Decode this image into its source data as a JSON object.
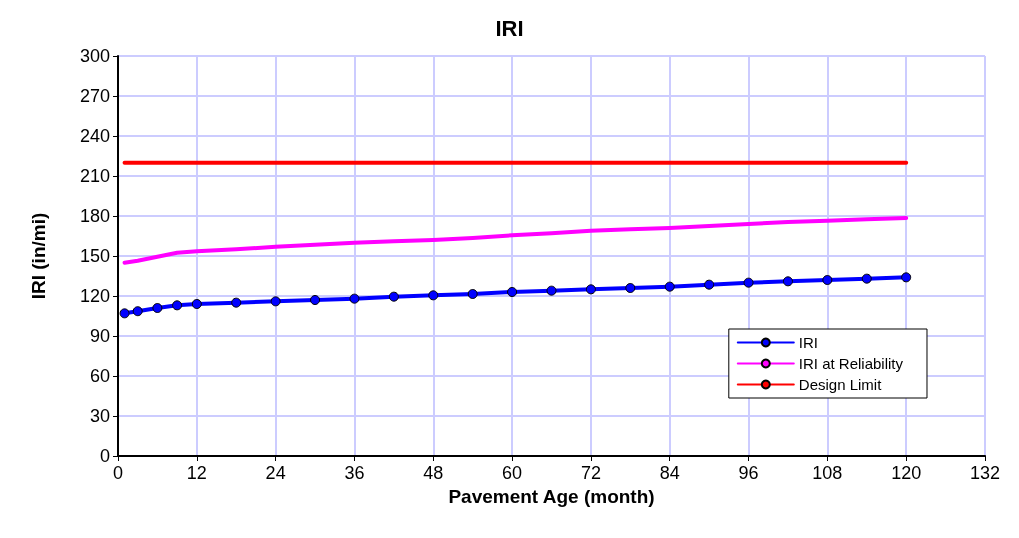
{
  "chart_data": {
    "type": "line",
    "title": "IRI",
    "xlabel": "Pavement Age (month)",
    "ylabel": "IRI (in/mi)",
    "xlim": [
      0,
      132
    ],
    "xticks": [
      0,
      12,
      24,
      36,
      48,
      60,
      72,
      84,
      96,
      108,
      120,
      132
    ],
    "ylim": [
      0,
      300
    ],
    "yticks": [
      0,
      30,
      60,
      90,
      120,
      150,
      180,
      210,
      240,
      270,
      300
    ],
    "grid": true,
    "legend": "bottom right",
    "line_style": "solid",
    "series": [
      {
        "name": "IRI",
        "color": "#0000ff",
        "marker": "circle",
        "x": [
          1,
          3,
          6,
          9,
          12,
          18,
          24,
          30,
          36,
          42,
          48,
          54,
          60,
          66,
          72,
          78,
          84,
          90,
          96,
          102,
          108,
          114,
          120
        ],
        "values": [
          107,
          108.6,
          111,
          113,
          114,
          115,
          116,
          117,
          118,
          119.5,
          120.5,
          121.5,
          123,
          124,
          125,
          126,
          127,
          128.5,
          130,
          131,
          132,
          133,
          134
        ]
      },
      {
        "name": "IRI at Reliability",
        "color": "#ff00ff",
        "marker": "none",
        "x": [
          1,
          3,
          6,
          9,
          12,
          18,
          24,
          30,
          36,
          42,
          48,
          54,
          60,
          66,
          72,
          78,
          84,
          90,
          96,
          102,
          108,
          114,
          120
        ],
        "values": [
          145,
          146.5,
          149.5,
          152.5,
          153.5,
          155,
          157,
          158.5,
          160,
          161,
          162,
          163.5,
          165.5,
          167,
          169,
          170,
          171,
          172.5,
          174,
          175.5,
          176.5,
          177.5,
          178.5
        ]
      },
      {
        "name": "Design Limit",
        "color": "#ff0000",
        "marker": "none",
        "x": [
          1,
          120
        ],
        "values": [
          220,
          220
        ]
      }
    ]
  }
}
